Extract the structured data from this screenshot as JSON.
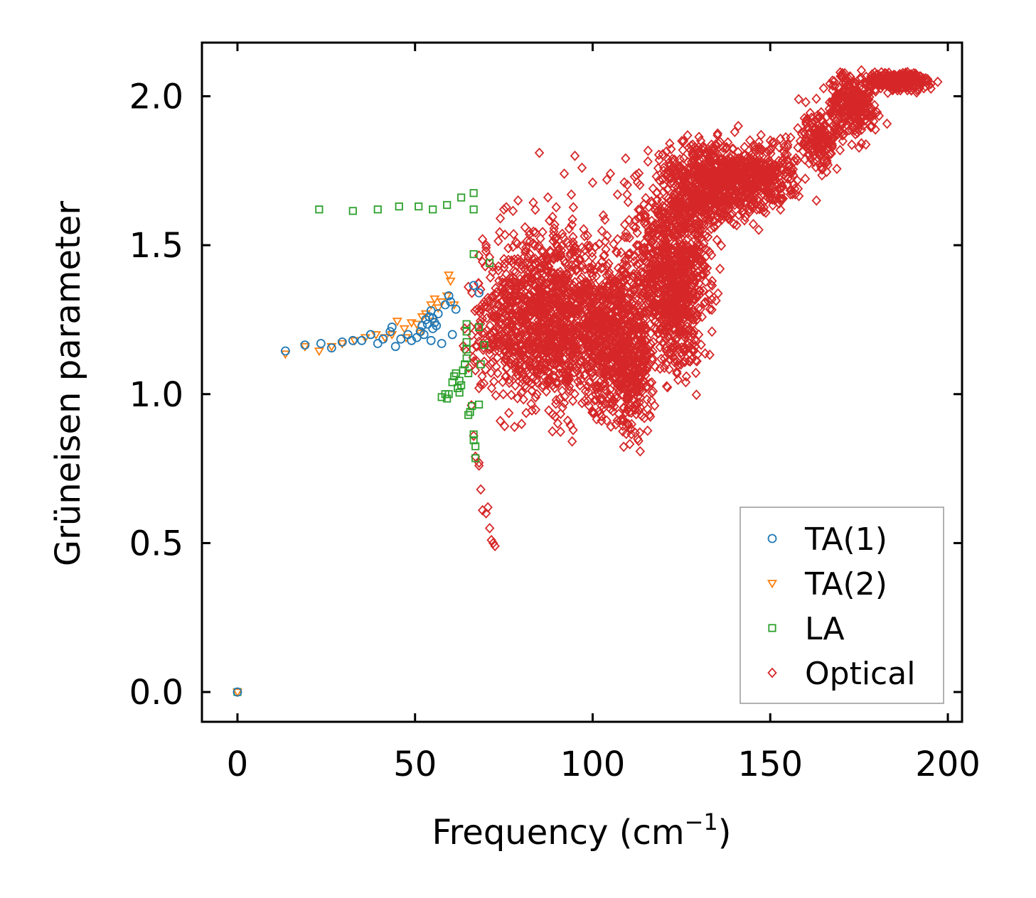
{
  "chart_data": {
    "type": "scatter",
    "title": "",
    "xlabel": "Frequency (cm",
    "xlabel_sup": "−1",
    "xlabel_suffix": ")",
    "ylabel": "Grüneisen parameter",
    "xlim": [
      -10,
      204
    ],
    "ylim": [
      -0.1,
      2.18
    ],
    "xticks": [
      0,
      50,
      100,
      150,
      200
    ],
    "yticks": [
      0.0,
      0.5,
      1.0,
      1.5,
      2.0
    ],
    "xtick_labels": [
      "0",
      "50",
      "100",
      "150",
      "200"
    ],
    "ytick_labels": [
      "0.0",
      "0.5",
      "1.0",
      "1.5",
      "2.0"
    ],
    "legend_position": "bottom-right",
    "series": [
      {
        "name": "TA(1)",
        "marker": "circle",
        "color": "#1f77b4",
        "points": [
          [
            0,
            0.0
          ],
          [
            13.5,
            1.145
          ],
          [
            19,
            1.165
          ],
          [
            23.5,
            1.17
          ],
          [
            26.5,
            1.155
          ],
          [
            29.5,
            1.175
          ],
          [
            32.5,
            1.18
          ],
          [
            35,
            1.18
          ],
          [
            37.5,
            1.2
          ],
          [
            39.5,
            1.17
          ],
          [
            41,
            1.185
          ],
          [
            43,
            1.21
          ],
          [
            43.5,
            1.225
          ],
          [
            44.5,
            1.16
          ],
          [
            46,
            1.185
          ],
          [
            48,
            1.2
          ],
          [
            49,
            1.18
          ],
          [
            50.5,
            1.19
          ],
          [
            51.5,
            1.21
          ],
          [
            52,
            1.23
          ],
          [
            52.5,
            1.2
          ],
          [
            53,
            1.25
          ],
          [
            53.5,
            1.235
          ],
          [
            54,
            1.26
          ],
          [
            54.5,
            1.28
          ],
          [
            55,
            1.22
          ],
          [
            55,
            1.255
          ],
          [
            55.5,
            1.24
          ],
          [
            56,
            1.23
          ],
          [
            56.5,
            1.27
          ],
          [
            57.5,
            1.17
          ],
          [
            54.5,
            1.18
          ],
          [
            58.5,
            1.3
          ],
          [
            59.5,
            1.33
          ],
          [
            60,
            1.31
          ],
          [
            60.5,
            1.2
          ],
          [
            61.5,
            1.285
          ],
          [
            66.5,
            1.365
          ],
          [
            68,
            1.34
          ]
        ]
      },
      {
        "name": "TA(2)",
        "marker": "triangle-down",
        "color": "#ff7f0e",
        "points": [
          [
            0,
            0.0
          ],
          [
            13.5,
            1.135
          ],
          [
            19,
            1.16
          ],
          [
            23,
            1.145
          ],
          [
            26.5,
            1.16
          ],
          [
            29.5,
            1.17
          ],
          [
            33,
            1.18
          ],
          [
            36,
            1.19
          ],
          [
            39,
            1.2
          ],
          [
            41.5,
            1.19
          ],
          [
            43.5,
            1.2
          ],
          [
            45,
            1.245
          ],
          [
            47,
            1.22
          ],
          [
            49,
            1.24
          ],
          [
            50.5,
            1.235
          ],
          [
            52,
            1.26
          ],
          [
            53,
            1.27
          ],
          [
            54.5,
            1.3
          ],
          [
            55.5,
            1.32
          ],
          [
            56.5,
            1.29
          ],
          [
            57.5,
            1.31
          ],
          [
            59,
            1.33
          ],
          [
            59.5,
            1.4
          ],
          [
            60,
            1.38
          ],
          [
            61,
            1.3
          ],
          [
            55,
            1.245
          ],
          [
            51.5,
            1.205
          ],
          [
            47.5,
            1.19
          ]
        ]
      },
      {
        "name": "LA",
        "marker": "square",
        "color": "#2ca02c",
        "points": [
          [
            0,
            0.0
          ],
          [
            23,
            1.62
          ],
          [
            32.5,
            1.615
          ],
          [
            39.5,
            1.62
          ],
          [
            45.5,
            1.63
          ],
          [
            51,
            1.63
          ],
          [
            55,
            1.62
          ],
          [
            59,
            1.635
          ],
          [
            63,
            1.66
          ],
          [
            66.5,
            1.675
          ],
          [
            66.5,
            1.62
          ],
          [
            66.5,
            1.47
          ],
          [
            71,
            1.44
          ],
          [
            57.5,
            0.99
          ],
          [
            58.5,
            1.0
          ],
          [
            59,
            0.985
          ],
          [
            59.5,
            1.0
          ],
          [
            60.5,
            1.04
          ],
          [
            61,
            1.06
          ],
          [
            61.5,
            1.07
          ],
          [
            62,
            1.02
          ],
          [
            62.5,
            1.005
          ],
          [
            63,
            1.03
          ],
          [
            63.5,
            1.08
          ],
          [
            64,
            1.1
          ],
          [
            64.5,
            1.12
          ],
          [
            64.5,
            1.15
          ],
          [
            64.5,
            1.175
          ],
          [
            64.5,
            1.21
          ],
          [
            64.5,
            1.235
          ],
          [
            65,
            0.93
          ],
          [
            65.5,
            0.94
          ],
          [
            66,
            0.96
          ],
          [
            66.5,
            0.865
          ],
          [
            66.5,
            0.845
          ],
          [
            67,
            0.825
          ],
          [
            67,
            0.785
          ],
          [
            68,
            0.965
          ],
          [
            68.5,
            1.1
          ],
          [
            69.5,
            1.165
          ],
          [
            68,
            1.225
          ],
          [
            65,
            1.07
          ],
          [
            62.5,
            1.045
          ]
        ]
      },
      {
        "name": "Optical",
        "marker": "diamond",
        "color": "#d62728",
        "clouds": [
          {
            "cx": 87,
            "cy": 1.3,
            "sx": 6.5,
            "sy": 0.14,
            "n": 650
          },
          {
            "cx": 80,
            "cy": 1.2,
            "sx": 6,
            "sy": 0.12,
            "n": 250
          },
          {
            "cx": 96,
            "cy": 1.22,
            "sx": 5,
            "sy": 0.15,
            "n": 250
          },
          {
            "cx": 106,
            "cy": 1.2,
            "sx": 5,
            "sy": 0.13,
            "n": 650
          },
          {
            "cx": 112,
            "cy": 1.05,
            "sx": 2.5,
            "sy": 0.1,
            "n": 150
          },
          {
            "cx": 122,
            "cy": 1.45,
            "sx": 5.5,
            "sy": 0.15,
            "n": 750
          },
          {
            "cx": 124,
            "cy": 1.3,
            "sx": 3,
            "sy": 0.12,
            "n": 250
          },
          {
            "cx": 134,
            "cy": 1.7,
            "sx": 6,
            "sy": 0.07,
            "n": 650
          },
          {
            "cx": 148,
            "cy": 1.73,
            "sx": 5,
            "sy": 0.05,
            "n": 300
          },
          {
            "cx": 164,
            "cy": 1.85,
            "sx": 2.5,
            "sy": 0.05,
            "n": 160
          },
          {
            "cx": 173,
            "cy": 1.97,
            "sx": 3.5,
            "sy": 0.05,
            "n": 280
          },
          {
            "cx": 186,
            "cy": 2.05,
            "sx": 4.5,
            "sy": 0.015,
            "n": 280
          },
          {
            "cx": 73,
            "cy": 1.25,
            "sx": 3.5,
            "sy": 0.1,
            "n": 120
          }
        ],
        "points": [
          [
            64,
            1.22
          ],
          [
            65,
            1.36
          ],
          [
            66,
            1.34
          ],
          [
            66.5,
            0.86
          ],
          [
            67,
            0.79
          ],
          [
            68,
            0.76
          ],
          [
            68.5,
            0.68
          ],
          [
            69,
            0.61
          ],
          [
            70,
            0.6
          ],
          [
            70.5,
            0.62
          ],
          [
            71,
            0.55
          ],
          [
            71.5,
            0.51
          ],
          [
            72,
            0.5
          ],
          [
            72.5,
            0.49
          ],
          [
            68,
            0.77
          ],
          [
            64,
            1.15
          ],
          [
            69,
            1.52
          ],
          [
            70,
            1.5
          ],
          [
            74,
            1.59
          ],
          [
            75,
            1.62
          ],
          [
            79,
            1.65
          ],
          [
            85,
            1.81
          ],
          [
            95,
            1.8
          ],
          [
            97,
            1.76
          ],
          [
            100,
            1.71
          ],
          [
            103,
            1.6
          ],
          [
            104,
            1.72
          ],
          [
            105,
            1.74
          ],
          [
            107,
            1.67
          ],
          [
            92,
            1.74
          ],
          [
            94,
            1.67
          ],
          [
            112,
            0.87
          ],
          [
            105,
            0.95
          ],
          [
            110,
            0.9
          ],
          [
            92,
            0.97
          ],
          [
            97,
            0.97
          ],
          [
            80,
            0.9
          ],
          [
            78,
            0.89
          ],
          [
            74,
            0.91
          ],
          [
            141,
            1.9
          ],
          [
            140,
            1.88
          ],
          [
            158,
            1.99
          ],
          [
            160,
            1.98
          ],
          [
            163,
            1.65
          ],
          [
            168,
            2.05
          ],
          [
            172,
            2.06
          ],
          [
            189,
            2.07
          ],
          [
            192,
            2.06
          ],
          [
            120,
            1.75
          ],
          [
            117,
            1.69
          ],
          [
            86,
            1.03
          ],
          [
            98,
            1.01
          ],
          [
            101,
            0.98
          ],
          [
            102,
            1.04
          ],
          [
            68,
            1.02
          ],
          [
            67,
            1.08
          ],
          [
            127,
            1.74
          ],
          [
            131,
            1.83
          ],
          [
            125,
            1.14
          ],
          [
            117,
            1.01
          ],
          [
            155,
            1.75
          ],
          [
            147,
            1.8
          ],
          [
            150,
            1.78
          ]
        ]
      }
    ]
  }
}
